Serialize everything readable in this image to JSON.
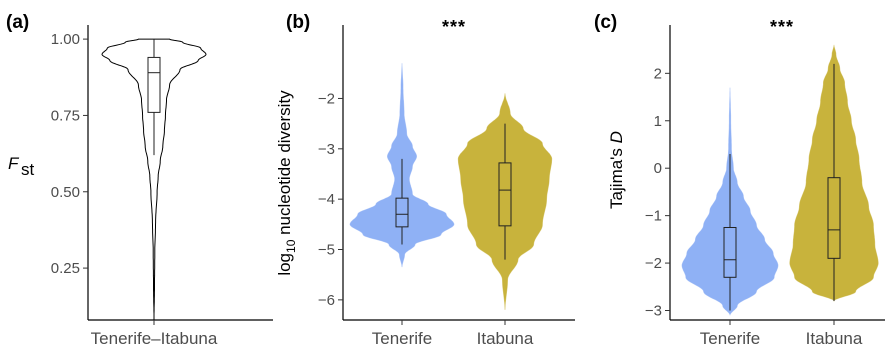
{
  "chart_data": [
    {
      "type": "violin",
      "panel": "(a)",
      "significance": "",
      "xlabel": "",
      "ylabel": "F",
      "ylabel_sub": "st",
      "ylabel_italic": true,
      "ylim": [
        0.08,
        1.02
      ],
      "yticks": [
        0.25,
        0.5,
        0.75,
        1.0
      ],
      "ytick_labels": [
        "0.25",
        "0.50",
        "0.75",
        "1.00"
      ],
      "grid": false,
      "categories": [
        "Tenerife–Itabuna"
      ],
      "violins": [
        {
          "category": "Tenerife–Itabuna",
          "color": "none",
          "outline": "#000000",
          "box": {
            "q1": 0.76,
            "median": 0.89,
            "q3": 0.94,
            "whisker_low": 0.62,
            "whisker_high": 1.0
          },
          "profile": [
            [
              0.08,
              0.0
            ],
            [
              0.2,
              0.01
            ],
            [
              0.3,
              0.015
            ],
            [
              0.4,
              0.03
            ],
            [
              0.5,
              0.06
            ],
            [
              0.55,
              0.08
            ],
            [
              0.6,
              0.12
            ],
            [
              0.65,
              0.17
            ],
            [
              0.7,
              0.2
            ],
            [
              0.75,
              0.22
            ],
            [
              0.8,
              0.24
            ],
            [
              0.85,
              0.3
            ],
            [
              0.9,
              0.5
            ],
            [
              0.93,
              0.85
            ],
            [
              0.95,
              1.0
            ],
            [
              0.97,
              0.9
            ],
            [
              0.99,
              0.55
            ],
            [
              1.0,
              0.3
            ]
          ]
        }
      ]
    },
    {
      "type": "violin",
      "panel": "(b)",
      "significance": "***",
      "xlabel": "",
      "ylabel": "log",
      "ylabel_sub": "10",
      "ylabel_rest": " nucleotide diversity",
      "ylim": [
        -6.4,
        -0.7
      ],
      "yticks": [
        -6,
        -5,
        -4,
        -3,
        -2
      ],
      "ytick_labels": [
        "−6",
        "−5",
        "−4",
        "−3",
        "−2"
      ],
      "grid": false,
      "categories": [
        "Tenerife",
        "Itabuna"
      ],
      "violins": [
        {
          "category": "Tenerife",
          "color": "#8fb1f5",
          "outline": "none",
          "box": {
            "q1": -4.55,
            "median": -4.3,
            "q3": -3.98,
            "whisker_low": -4.9,
            "whisker_high": -3.2
          },
          "profile": [
            [
              -5.35,
              0.0
            ],
            [
              -5.1,
              0.05
            ],
            [
              -4.9,
              0.25
            ],
            [
              -4.7,
              0.75
            ],
            [
              -4.5,
              1.0
            ],
            [
              -4.3,
              0.85
            ],
            [
              -4.1,
              0.5
            ],
            [
              -3.9,
              0.2
            ],
            [
              -3.6,
              0.14
            ],
            [
              -3.35,
              0.2
            ],
            [
              -3.15,
              0.28
            ],
            [
              -2.95,
              0.2
            ],
            [
              -2.7,
              0.09
            ],
            [
              -2.3,
              0.04
            ],
            [
              -1.8,
              0.02
            ],
            [
              -1.3,
              0.0
            ]
          ]
        },
        {
          "category": "Itabuna",
          "color": "#c8b33c",
          "outline": "none",
          "box": {
            "q1": -4.53,
            "median": -3.82,
            "q3": -3.28,
            "whisker_low": -5.2,
            "whisker_high": -2.5
          },
          "profile": [
            [
              -6.2,
              0.0
            ],
            [
              -5.6,
              0.05
            ],
            [
              -5.2,
              0.25
            ],
            [
              -4.9,
              0.55
            ],
            [
              -4.5,
              0.72
            ],
            [
              -4.0,
              0.8
            ],
            [
              -3.6,
              0.85
            ],
            [
              -3.2,
              0.9
            ],
            [
              -2.9,
              0.72
            ],
            [
              -2.6,
              0.35
            ],
            [
              -2.3,
              0.1
            ],
            [
              -1.9,
              0.0
            ]
          ]
        }
      ]
    },
    {
      "type": "violin",
      "panel": "(c)",
      "significance": "***",
      "xlabel": "",
      "ylabel": "Tajima's ",
      "ylabel_italic_part": "D",
      "ylim": [
        -3.2,
        2.85
      ],
      "yticks": [
        -3,
        -2,
        -1,
        0,
        1,
        2
      ],
      "ytick_labels": [
        "−3",
        "−2",
        "−1",
        "0",
        "1",
        "2"
      ],
      "grid": false,
      "categories": [
        "Tenerife",
        "Itabuna"
      ],
      "violins": [
        {
          "category": "Tenerife",
          "color": "#8fb1f5",
          "outline": "none",
          "box": {
            "q1": -2.3,
            "median": -1.93,
            "q3": -1.25,
            "whisker_low": -3.0,
            "whisker_high": 0.3
          },
          "profile": [
            [
              -3.1,
              0.0
            ],
            [
              -2.9,
              0.15
            ],
            [
              -2.6,
              0.55
            ],
            [
              -2.3,
              0.92
            ],
            [
              -2.05,
              1.0
            ],
            [
              -1.8,
              0.9
            ],
            [
              -1.5,
              0.72
            ],
            [
              -1.2,
              0.55
            ],
            [
              -0.9,
              0.42
            ],
            [
              -0.6,
              0.28
            ],
            [
              -0.3,
              0.15
            ],
            [
              0.0,
              0.07
            ],
            [
              0.4,
              0.03
            ],
            [
              1.0,
              0.015
            ],
            [
              1.7,
              0.0
            ]
          ]
        },
        {
          "category": "Itabuna",
          "color": "#c8b33c",
          "outline": "none",
          "box": {
            "q1": -1.9,
            "median": -1.3,
            "q3": -0.2,
            "whisker_low": -2.8,
            "whisker_high": 2.2
          },
          "profile": [
            [
              -2.8,
              0.0
            ],
            [
              -2.6,
              0.45
            ],
            [
              -2.3,
              0.82
            ],
            [
              -2.0,
              0.92
            ],
            [
              -1.6,
              0.85
            ],
            [
              -1.2,
              0.82
            ],
            [
              -0.8,
              0.72
            ],
            [
              -0.3,
              0.58
            ],
            [
              0.2,
              0.52
            ],
            [
              0.6,
              0.45
            ],
            [
              1.0,
              0.36
            ],
            [
              1.4,
              0.28
            ],
            [
              1.8,
              0.22
            ],
            [
              2.1,
              0.12
            ],
            [
              2.4,
              0.04
            ],
            [
              2.6,
              0.0
            ]
          ]
        }
      ]
    }
  ]
}
